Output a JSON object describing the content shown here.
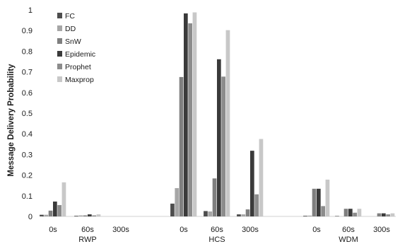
{
  "chart_data": {
    "type": "bar",
    "ylabel": "Message Delivery Probability",
    "ylim": [
      0,
      1
    ],
    "yticks": [
      "0",
      "0.1",
      "0.2",
      "0.3",
      "0.4",
      "0.5",
      "0.6",
      "0.7",
      "0.8",
      "0.9",
      "1"
    ],
    "grid": false,
    "legend_position": "top-left",
    "groups": [
      "RWP",
      "HCS",
      "WDM"
    ],
    "subcategories": [
      "0s",
      "60s",
      "300s"
    ],
    "series": [
      {
        "name": "FC",
        "color": "#4d4d4d",
        "values": [
          0.008,
          0.003,
          0.0,
          0.062,
          0.026,
          0.01,
          0.003,
          0.002,
          0.0
        ]
      },
      {
        "name": "DD",
        "color": "#a6a6a6",
        "values": [
          0.008,
          0.005,
          0.0,
          0.137,
          0.024,
          0.01,
          0.004,
          0.0,
          0.0
        ]
      },
      {
        "name": "SnW",
        "color": "#7f7f7f",
        "values": [
          0.028,
          0.005,
          0.0,
          0.675,
          0.184,
          0.034,
          0.134,
          0.037,
          0.015
        ]
      },
      {
        "name": "Epidemic",
        "color": "#3a3a3a",
        "values": [
          0.072,
          0.01,
          0.0,
          0.983,
          0.761,
          0.318,
          0.134,
          0.037,
          0.015
        ]
      },
      {
        "name": "Prophet",
        "color": "#8c8c8c",
        "values": [
          0.055,
          0.005,
          0.0,
          0.935,
          0.677,
          0.107,
          0.05,
          0.018,
          0.01
        ]
      },
      {
        "name": "Maxprop",
        "color": "#c8c8c8",
        "values": [
          0.165,
          0.01,
          0.0,
          0.988,
          0.902,
          0.375,
          0.178,
          0.037,
          0.015
        ]
      }
    ]
  }
}
